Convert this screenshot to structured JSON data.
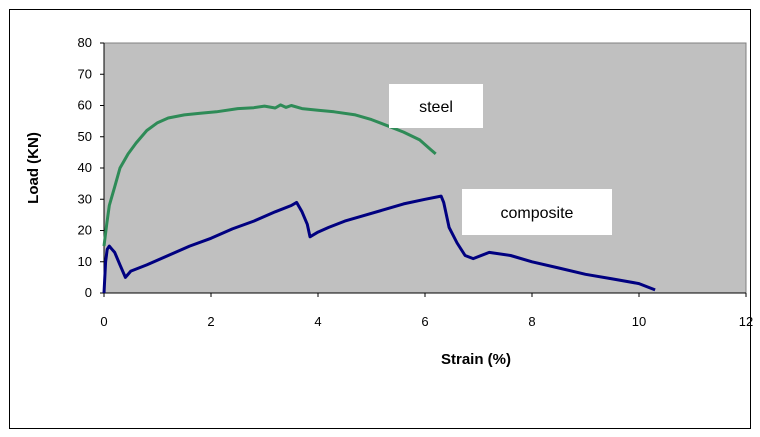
{
  "chart_data": {
    "type": "line",
    "xlabel": "Strain (%)",
    "ylabel": "Load (KN)",
    "xlim": [
      0,
      12
    ],
    "ylim": [
      0,
      80
    ],
    "x_ticks": [
      "0",
      "2",
      "4",
      "6",
      "8",
      "10",
      "12"
    ],
    "y_ticks": [
      "0",
      "10",
      "20",
      "30",
      "40",
      "50",
      "60",
      "70",
      "80"
    ],
    "grid": false,
    "plot_background": "#c0c0c0",
    "series": [
      {
        "name": "steel",
        "color": "#2e8b57",
        "x": [
          0,
          0.05,
          0.1,
          0.2,
          0.3,
          0.45,
          0.6,
          0.8,
          1.0,
          1.2,
          1.5,
          1.8,
          2.1,
          2.5,
          2.8,
          3.0,
          3.2,
          3.3,
          3.4,
          3.5,
          3.7,
          4.0,
          4.3,
          4.7,
          5.0,
          5.3,
          5.6,
          5.9,
          6.1,
          6.2
        ],
        "y": [
          15,
          22,
          28,
          34,
          40,
          44.5,
          48,
          52,
          54.5,
          56,
          57,
          57.5,
          58,
          59,
          59.3,
          59.8,
          59.2,
          60.2,
          59.4,
          60,
          59,
          58.5,
          58,
          57,
          55.5,
          53.5,
          51.5,
          49,
          46,
          44.5
        ]
      },
      {
        "name": "composite",
        "color": "#000080",
        "x": [
          0,
          0.03,
          0.06,
          0.1,
          0.15,
          0.2,
          0.3,
          0.4,
          0.5,
          0.8,
          1.2,
          1.6,
          2.0,
          2.4,
          2.8,
          3.2,
          3.5,
          3.6,
          3.7,
          3.8,
          3.85,
          4.0,
          4.2,
          4.5,
          4.8,
          5.2,
          5.6,
          6.0,
          6.3,
          6.35,
          6.45,
          6.6,
          6.75,
          6.9,
          7.2,
          7.6,
          8.0,
          8.5,
          9.0,
          9.5,
          10.0,
          10.3
        ],
        "y": [
          0,
          10,
          14,
          15,
          14,
          13,
          9,
          5,
          7,
          9,
          12,
          15,
          17.5,
          20.5,
          23,
          26,
          28,
          29,
          26,
          22,
          18,
          19.5,
          21,
          23,
          24.5,
          26.5,
          28.5,
          30,
          31,
          29,
          21,
          16,
          12,
          11,
          13,
          12,
          10,
          8,
          6,
          4.5,
          3,
          1
        ]
      }
    ],
    "labels": [
      {
        "text": "steel",
        "series": "steel"
      },
      {
        "text": "composite",
        "series": "composite"
      }
    ]
  }
}
